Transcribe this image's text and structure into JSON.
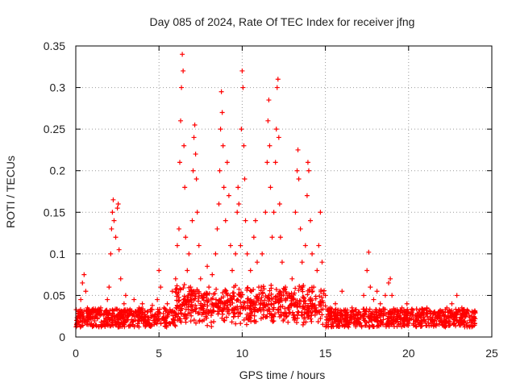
{
  "chart_data": {
    "type": "scatter",
    "title": "Day 085 of 2024, Rate Of TEC Index for receiver jfng",
    "xlabel": "GPS time / hours",
    "ylabel": "ROTI / TECUs",
    "xlim": [
      0,
      25
    ],
    "ylim": [
      0,
      0.35
    ],
    "xticks": [
      0,
      5,
      10,
      15,
      20,
      25
    ],
    "xtick_labels": [
      "0",
      "5",
      "10",
      "15",
      "20",
      "25"
    ],
    "yticks": [
      0,
      0.05,
      0.1,
      0.15,
      0.2,
      0.25,
      0.3,
      0.35
    ],
    "ytick_labels": [
      "0",
      "0.05",
      "0.1",
      "0.15",
      "0.2",
      "0.25",
      "0.3",
      "0.35"
    ],
    "grid": true,
    "marker": "+",
    "color": "#ff0000",
    "series": [
      {
        "name": "ROTI",
        "points": [
          [
            0.05,
            0.02
          ],
          [
            0.15,
            0.028
          ],
          [
            0.3,
            0.045
          ],
          [
            0.4,
            0.065
          ],
          [
            0.5,
            0.075
          ],
          [
            0.6,
            0.055
          ],
          [
            0.7,
            0.035
          ],
          [
            0.9,
            0.025
          ],
          [
            1.1,
            0.03
          ],
          [
            1.3,
            0.022
          ],
          [
            1.5,
            0.035
          ],
          [
            1.7,
            0.028
          ],
          [
            1.9,
            0.045
          ],
          [
            2.0,
            0.06
          ],
          [
            2.1,
            0.1
          ],
          [
            2.15,
            0.13
          ],
          [
            2.2,
            0.15
          ],
          [
            2.25,
            0.165
          ],
          [
            2.3,
            0.14
          ],
          [
            2.4,
            0.12
          ],
          [
            2.5,
            0.155
          ],
          [
            2.55,
            0.16
          ],
          [
            2.6,
            0.105
          ],
          [
            2.7,
            0.07
          ],
          [
            2.9,
            0.04
          ],
          [
            3.0,
            0.05
          ],
          [
            3.2,
            0.03
          ],
          [
            3.5,
            0.045
          ],
          [
            3.8,
            0.035
          ],
          [
            4.0,
            0.04
          ],
          [
            4.3,
            0.03
          ],
          [
            4.6,
            0.038
          ],
          [
            4.9,
            0.045
          ],
          [
            5.0,
            0.08
          ],
          [
            5.1,
            0.06
          ],
          [
            5.3,
            0.035
          ],
          [
            5.5,
            0.04
          ],
          [
            5.8,
            0.055
          ],
          [
            6.0,
            0.07
          ],
          [
            6.1,
            0.11
          ],
          [
            6.2,
            0.13
          ],
          [
            6.25,
            0.21
          ],
          [
            6.3,
            0.26
          ],
          [
            6.35,
            0.3
          ],
          [
            6.4,
            0.34
          ],
          [
            6.45,
            0.32
          ],
          [
            6.5,
            0.23
          ],
          [
            6.55,
            0.18
          ],
          [
            6.6,
            0.12
          ],
          [
            6.7,
            0.08
          ],
          [
            6.8,
            0.1
          ],
          [
            6.9,
            0.06
          ],
          [
            7.0,
            0.14
          ],
          [
            7.05,
            0.2
          ],
          [
            7.1,
            0.24
          ],
          [
            7.15,
            0.255
          ],
          [
            7.2,
            0.22
          ],
          [
            7.25,
            0.19
          ],
          [
            7.3,
            0.15
          ],
          [
            7.4,
            0.11
          ],
          [
            7.5,
            0.07
          ],
          [
            7.7,
            0.05
          ],
          [
            7.9,
            0.085
          ],
          [
            8.0,
            0.06
          ],
          [
            8.2,
            0.075
          ],
          [
            8.4,
            0.1
          ],
          [
            8.5,
            0.13
          ],
          [
            8.6,
            0.16
          ],
          [
            8.65,
            0.2
          ],
          [
            8.7,
            0.25
          ],
          [
            8.75,
            0.295
          ],
          [
            8.8,
            0.27
          ],
          [
            8.85,
            0.23
          ],
          [
            8.9,
            0.18
          ],
          [
            9.0,
            0.14
          ],
          [
            9.1,
            0.21
          ],
          [
            9.2,
            0.17
          ],
          [
            9.3,
            0.11
          ],
          [
            9.4,
            0.08
          ],
          [
            9.5,
            0.06
          ],
          [
            9.6,
            0.1
          ],
          [
            9.7,
            0.15
          ],
          [
            9.75,
            0.18
          ],
          [
            9.8,
            0.16
          ],
          [
            9.9,
            0.11
          ],
          [
            9.95,
            0.25
          ],
          [
            10.0,
            0.32
          ],
          [
            10.05,
            0.3
          ],
          [
            10.1,
            0.23
          ],
          [
            10.15,
            0.19
          ],
          [
            10.2,
            0.14
          ],
          [
            10.3,
            0.1
          ],
          [
            10.5,
            0.08
          ],
          [
            10.7,
            0.12
          ],
          [
            10.8,
            0.14
          ],
          [
            10.9,
            0.09
          ],
          [
            11.0,
            0.06
          ],
          [
            11.2,
            0.1
          ],
          [
            11.4,
            0.15
          ],
          [
            11.5,
            0.21
          ],
          [
            11.55,
            0.26
          ],
          [
            11.6,
            0.285
          ],
          [
            11.65,
            0.23
          ],
          [
            11.7,
            0.18
          ],
          [
            11.8,
            0.12
          ],
          [
            11.9,
            0.15
          ],
          [
            12.0,
            0.21
          ],
          [
            12.05,
            0.25
          ],
          [
            12.1,
            0.3
          ],
          [
            12.15,
            0.31
          ],
          [
            12.2,
            0.24
          ],
          [
            12.25,
            0.16
          ],
          [
            12.3,
            0.12
          ],
          [
            12.4,
            0.09
          ],
          [
            12.6,
            0.06
          ],
          [
            12.8,
            0.05
          ],
          [
            13.0,
            0.07
          ],
          [
            13.2,
            0.15
          ],
          [
            13.3,
            0.2
          ],
          [
            13.35,
            0.225
          ],
          [
            13.4,
            0.19
          ],
          [
            13.5,
            0.13
          ],
          [
            13.6,
            0.09
          ],
          [
            13.8,
            0.11
          ],
          [
            13.9,
            0.17
          ],
          [
            13.95,
            0.21
          ],
          [
            14.0,
            0.2
          ],
          [
            14.1,
            0.14
          ],
          [
            14.2,
            0.1
          ],
          [
            14.3,
            0.06
          ],
          [
            14.5,
            0.08
          ],
          [
            14.6,
            0.11
          ],
          [
            14.7,
            0.15
          ],
          [
            14.8,
            0.09
          ],
          [
            15.0,
            0.05
          ],
          [
            15.3,
            0.035
          ],
          [
            15.6,
            0.04
          ],
          [
            16.0,
            0.055
          ],
          [
            16.3,
            0.03
          ],
          [
            16.6,
            0.035
          ],
          [
            17.0,
            0.03
          ],
          [
            17.3,
            0.05
          ],
          [
            17.5,
            0.08
          ],
          [
            17.6,
            0.102
          ],
          [
            17.7,
            0.06
          ],
          [
            17.9,
            0.045
          ],
          [
            18.1,
            0.055
          ],
          [
            18.3,
            0.04
          ],
          [
            18.6,
            0.05
          ],
          [
            18.8,
            0.065
          ],
          [
            18.9,
            0.07
          ],
          [
            19.0,
            0.05
          ],
          [
            19.3,
            0.03
          ],
          [
            19.6,
            0.035
          ],
          [
            19.9,
            0.04
          ],
          [
            20.2,
            0.03
          ],
          [
            20.5,
            0.025
          ],
          [
            20.8,
            0.03
          ],
          [
            21.1,
            0.035
          ],
          [
            21.4,
            0.02
          ],
          [
            21.7,
            0.025
          ],
          [
            22.0,
            0.03
          ],
          [
            22.3,
            0.035
          ],
          [
            22.6,
            0.04
          ],
          [
            22.9,
            0.05
          ],
          [
            23.2,
            0.035
          ],
          [
            23.5,
            0.028
          ],
          [
            23.8,
            0.025
          ],
          [
            24.0,
            0.022
          ]
        ]
      }
    ]
  }
}
